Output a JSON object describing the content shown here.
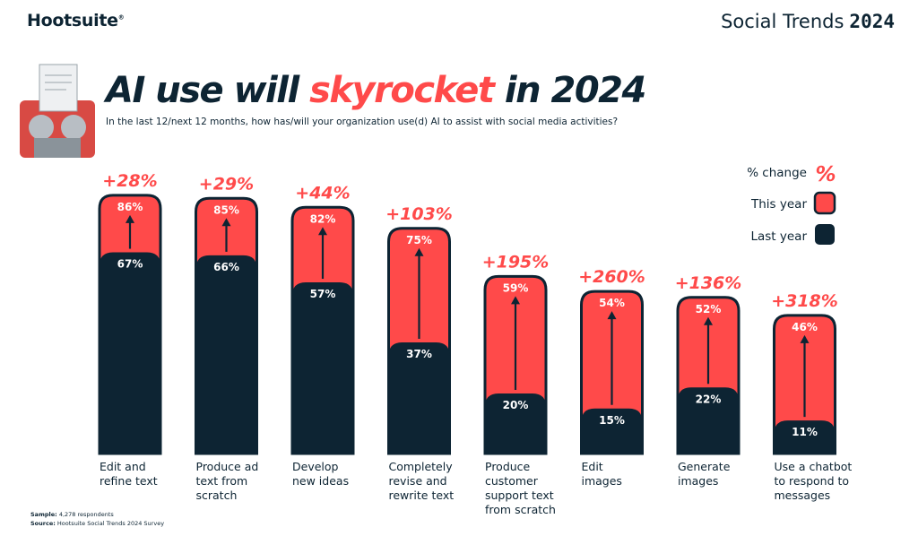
{
  "brand": {
    "logo": "Hootsuite",
    "reg": "®",
    "report": "Social Trends",
    "report_year": "2024"
  },
  "title": {
    "pre": "AI use will ",
    "highlight": "skyrocket",
    "post": " in 2024"
  },
  "subtitle": "In the last 12/next 12 months, how has/will your organization use(d) AI to assist with social media activities?",
  "legend": {
    "change_label": "% change",
    "change_symbol": "%",
    "this_year": "This year",
    "last_year": "Last year"
  },
  "colors": {
    "red": "#ff4a4a",
    "navy": "#0d2433",
    "white": "#ffffff"
  },
  "chart_data": {
    "type": "bar",
    "categories": [
      [
        "Edit and",
        "refine text"
      ],
      [
        "Produce ad",
        "text from",
        "scratch"
      ],
      [
        "Develop",
        "new ideas"
      ],
      [
        "Completely",
        "revise and",
        "rewrite text"
      ],
      [
        "Produce",
        "customer",
        "support text",
        "from scratch"
      ],
      [
        "Edit",
        "images"
      ],
      [
        "Generate",
        "images"
      ],
      [
        "Use a chatbot",
        "to respond to",
        "messages"
      ]
    ],
    "series": [
      {
        "name": "Last year",
        "values": [
          67,
          66,
          57,
          37,
          20,
          15,
          22,
          11
        ],
        "labels": [
          "67%",
          "66%",
          "57%",
          "37%",
          "20%",
          "15%",
          "22%",
          "11%"
        ]
      },
      {
        "name": "This year",
        "values": [
          86,
          85,
          82,
          75,
          59,
          54,
          52,
          46
        ],
        "labels": [
          "86%",
          "85%",
          "82%",
          "75%",
          "59%",
          "54%",
          "52%",
          "46%"
        ]
      }
    ],
    "change_labels": [
      "+28%",
      "+29%",
      "+44%",
      "+103%",
      "+195%",
      "+260%",
      "+136%",
      "+318%"
    ],
    "ylim": [
      0,
      100
    ]
  },
  "footnotes": {
    "sample_label": "Sample:",
    "sample": "4,278 respondents",
    "source_label": "Source:",
    "source": "Hootsuite Social Trends 2024 Survey"
  }
}
